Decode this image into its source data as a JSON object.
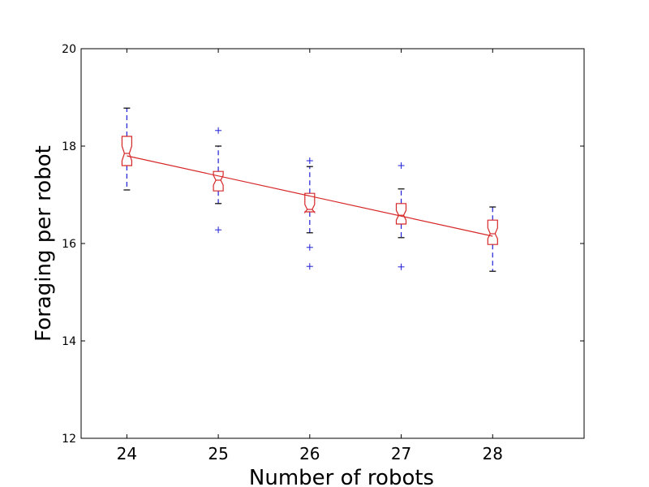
{
  "chart_data": {
    "type": "box",
    "xlabel": "Number of robots",
    "ylabel": "Foraging per robot",
    "categories": [
      "24",
      "25",
      "26",
      "27",
      "28"
    ],
    "xlim": [
      23.5,
      29.0
    ],
    "ylim": [
      12,
      20
    ],
    "yticks": [
      "12",
      "14",
      "16",
      "18",
      "20"
    ],
    "grid": false,
    "colors": {
      "box": "#d62728",
      "whisker": "#1f1fd6",
      "cap": "#000000",
      "outlier": "#1f1fd6",
      "fit_line": "#d62728"
    },
    "boxes": [
      {
        "x": 24,
        "whislo": 17.1,
        "q1": 17.6,
        "med": 17.85,
        "q3": 18.2,
        "whishi": 18.78,
        "notch_lo": 17.7,
        "notch_hi": 18.0,
        "fliers": []
      },
      {
        "x": 25,
        "whislo": 16.82,
        "q1": 17.08,
        "med": 17.3,
        "q3": 17.48,
        "whishi": 18.0,
        "notch_lo": 17.2,
        "notch_hi": 17.4,
        "fliers": [
          16.28,
          18.32
        ]
      },
      {
        "x": 26,
        "whislo": 16.22,
        "q1": 16.65,
        "med": 16.7,
        "q3": 17.03,
        "whishi": 17.58,
        "notch_lo": 16.64,
        "notch_hi": 16.8,
        "fliers": [
          15.53,
          15.92,
          17.7
        ]
      },
      {
        "x": 27,
        "whislo": 16.12,
        "q1": 16.4,
        "med": 16.58,
        "q3": 16.82,
        "whishi": 17.12,
        "notch_lo": 16.48,
        "notch_hi": 16.68,
        "fliers": [
          15.52,
          17.6
        ]
      },
      {
        "x": 28,
        "whislo": 15.43,
        "q1": 15.98,
        "med": 16.2,
        "q3": 16.48,
        "whishi": 16.75,
        "notch_lo": 16.1,
        "notch_hi": 16.32,
        "fliers": []
      }
    ],
    "fit_line": {
      "x": [
        24,
        28
      ],
      "y": [
        17.8,
        16.15
      ]
    }
  }
}
